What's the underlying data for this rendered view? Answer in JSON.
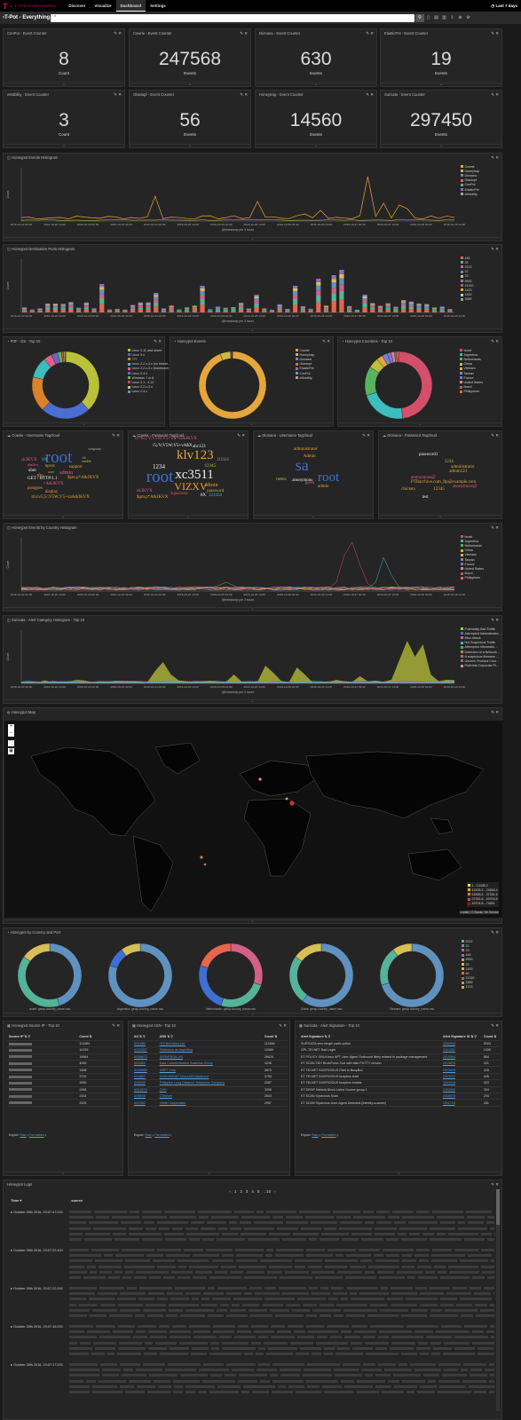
{
  "nav": {
    "brand": "T · ·",
    "brand_sub": "LIFE IS FOR SHARING.",
    "links": [
      "Discover",
      "Visualize",
      "Dashboard",
      "Settings"
    ],
    "active": "Dashboard",
    "time": "Last 7 days"
  },
  "dashboard": {
    "title": "›T-Pot - Everything",
    "query": "*"
  },
  "counters": [
    {
      "title": "ConPot - Event Counter",
      "value": "8",
      "label": "Count"
    },
    {
      "title": "Cowrie - Event Counter",
      "value": "247568",
      "label": "Events"
    },
    {
      "title": "Dionaea - Event Counter",
      "value": "630",
      "label": "Events"
    },
    {
      "title": "ElasticPot - Event Counter",
      "value": "19",
      "label": "Events"
    },
    {
      "title": "eMobility - Event Counter",
      "value": "3",
      "label": "Count"
    },
    {
      "title": "Glastopf - Event Counter",
      "value": "56",
      "label": "Events"
    },
    {
      "title": "Honeytrap - Event Counter",
      "value": "14560",
      "label": "Events"
    },
    {
      "title": "Suricata - Event Counter",
      "value": "297450",
      "label": "Events"
    }
  ],
  "histogram1": {
    "title": "Honeypot Events Histogram",
    "ylabel": "Count",
    "xlabel": "@timestamp per 3 hours",
    "legend": [
      {
        "name": "Cowrie",
        "color": "#e5a63c"
      },
      {
        "name": "Honeytrap",
        "color": "#d1b63f"
      },
      {
        "name": "Dionaea",
        "color": "#6f87d8"
      },
      {
        "name": "Glastopf",
        "color": "#e7664c"
      },
      {
        "name": "ConPot",
        "color": "#54b399"
      },
      {
        "name": "ElasticPot",
        "color": "#9170b8"
      },
      {
        "name": "eMobility",
        "color": "#ca8eae"
      }
    ]
  },
  "histogram2": {
    "title": "Honeypot Destination Ports Histogram",
    "ylabel": "Count",
    "xlabel": "@timestamp per 3 hours",
    "legend": [
      {
        "name": "445",
        "color": "#e7664c"
      },
      {
        "name": "25",
        "color": "#54b399"
      },
      {
        "name": "2222",
        "color": "#d36086"
      },
      {
        "name": "22",
        "color": "#6092c0"
      },
      {
        "name": "23",
        "color": "#d6bf57"
      },
      {
        "name": "5900",
        "color": "#9170b8"
      },
      {
        "name": "21320",
        "color": "#aa6556"
      },
      {
        "name": "1433",
        "color": "#e7a43c"
      },
      {
        "name": "1900",
        "color": "#b0c9e0"
      },
      {
        "name": "3389",
        "color": "#82b366"
      }
    ]
  },
  "x_ticks": [
    "2016-10-22 02:00",
    "2016-10-22 14:00",
    "2016-10-23 02:00",
    "2016-10-23 14:00",
    "2016-10-24 02:00",
    "2016-10-24 14:00",
    "2016-10-25 02:00",
    "2016-10-25 14:00",
    "2016-10-26 02:00",
    "2016-10-26 14:00",
    "2016-10-27 02:00",
    "2016-10-27 14:00",
    "2016-10-28 02:00",
    "2016-10-28 14:00"
  ],
  "p0f": {
    "title": "P0F - OS - Top 10",
    "legend": [
      "Linux 3.11 and newer",
      "Linux 3.x",
      "???",
      "Linux 2.2.x-3.x (no timest...",
      "Linux 2.2.x-3.x (barebone)",
      "Linux 2.4.x",
      "Windows 7 or 8",
      "Linux 3.1 - 3.10",
      "Linux 2.2.x-3.x",
      "Linux 2.4.x"
    ],
    "colors": [
      "#b9c13a",
      "#4a6fd1",
      "#d9822b",
      "#3dbdbd",
      "#e25d8a",
      "#7c5cc4",
      "#58b35f",
      "#c94c4c",
      "#d6bf57",
      "#6092c0"
    ],
    "values": [
      38,
      24,
      17,
      10,
      4,
      3,
      2,
      1,
      0.6,
      0.4
    ]
  },
  "hpevents": {
    "title": "Honeypot Events",
    "legend": [
      "Cowrie",
      "Honeytrap",
      "Dionaea",
      "Glastopf",
      "ElasticPot",
      "ConPot",
      "eMobility"
    ],
    "colors": [
      "#e5a63c",
      "#d1b63f",
      "#6f87d8",
      "#e7664c",
      "#9170b8",
      "#54b399",
      "#ca8eae"
    ],
    "values": [
      94,
      5,
      0.4,
      0.2,
      0.2,
      0.1,
      0.1
    ]
  },
  "countries": {
    "title": "Honeypot Countries - Top 10",
    "legend": [
      "Israel",
      "Argentina",
      "Netherlands",
      "China",
      "Vietnam",
      "Taiwan",
      "France",
      "United States",
      "Brazil",
      "Philippines"
    ],
    "colors": [
      "#d34f6a",
      "#3dbdbd",
      "#58b35f",
      "#b9c13a",
      "#e5a63c",
      "#6f87d8",
      "#9170b8",
      "#ca8eae",
      "#aa6556",
      "#e7664c"
    ],
    "values": [
      48,
      22,
      14,
      5,
      3,
      2.5,
      2,
      1.5,
      1,
      1
    ]
  },
  "cloud1": {
    "title": "Cowrie - Username Tagcloud",
    "words": [
      {
        "t": "root",
        "s": 19,
        "c": "#3f6fd4",
        "x": 52,
        "y": 20
      },
      {
        "t": "support",
        "s": 5,
        "c": "#e5a63c",
        "x": 82,
        "y": 38
      },
      {
        "t": "nproc",
        "s": 5,
        "c": "#b9c13a",
        "x": 52,
        "y": 37
      },
      {
        "t": "admin",
        "s": 6,
        "c": "#e25d8a",
        "x": 70,
        "y": 44
      },
      {
        "t": "$pm.p*A&JKVX",
        "s": 5,
        "c": "#e5a63c",
        "x": 80,
        "y": 50
      },
      {
        "t": "GET / HTTP/1.1",
        "s": 5,
        "c": "#eee",
        "x": 30,
        "y": 51
      },
      {
        "t": "^A&JKVX",
        "s": 5,
        "c": "#e25d8a",
        "x": 50,
        "y": 57
      },
      {
        "t": "postgres",
        "s": 5,
        "c": "#e5a63c",
        "x": 30,
        "y": 62
      },
      {
        "t": "ubnt",
        "s": 5,
        "c": "#eee",
        "x": 31,
        "y": 42
      },
      {
        "t": "8X",
        "s": 5,
        "c": "#3dbdbd",
        "x": 48,
        "y": 30
      },
      {
        "t": "shadow",
        "s": 4,
        "c": "#e25d8a",
        "x": 30,
        "y": 36
      },
      {
        "t": "sh3KVX",
        "s": 5,
        "c": "#e25d8a",
        "x": 22,
        "y": 30
      },
      {
        "t": "display",
        "s": 5,
        "c": "#e5a63c",
        "x": 52,
        "y": 66
      },
      {
        "t": "tftp",
        "s": 5,
        "c": "#e5a63c",
        "x": 42,
        "y": 48
      },
      {
        "t": "ssh",
        "s": 4,
        "c": "#3dbdbd",
        "x": 98,
        "y": 28
      },
      {
        "t": "t/h1v5;5/;V5W;V5+vaA&JKVX",
        "s": 5,
        "c": "#e5a63c",
        "x": 35,
        "y": 72
      },
      {
        "t": "user",
        "s": 4,
        "c": "#b9c13a",
        "x": 56,
        "y": 44
      },
      {
        "t": "enable",
        "s": 4,
        "c": "#b9c13a",
        "x": 98,
        "y": 32
      },
      {
        "t": "sangoma",
        "s": 4,
        "c": "#aaa",
        "x": 106,
        "y": 18
      }
    ]
  },
  "cloud2": {
    "title": "Cowrie - Password Tagcloud",
    "words": [
      {
        "t": "h!*h5;/V;V5W;V5+w$*vaAJKVX",
        "s": 5,
        "c": "#e25d8a",
        "x": 8,
        "y": 6
      },
      {
        "t": "/5;/V;V5W;V5+vA$X",
        "s": 5,
        "c": "#eee",
        "x": 30,
        "y": 14
      },
      {
        "t": "abc123",
        "s": 5,
        "c": "#eee",
        "x": 80,
        "y": 15
      },
      {
        "t": "klv123",
        "s": 15,
        "c": "#e5a63c",
        "x": 60,
        "y": 20
      },
      {
        "t": "111111",
        "s": 5,
        "c": "#aaa",
        "x": 110,
        "y": 30
      },
      {
        "t": "1234",
        "s": 7,
        "c": "#eee",
        "x": 30,
        "y": 37
      },
      {
        "t": "root",
        "s": 19,
        "c": "#3f6fd4",
        "x": 22,
        "y": 42
      },
      {
        "t": "xc3511",
        "s": 15,
        "c": "#eee",
        "x": 58,
        "y": 42
      },
      {
        "t": "12345",
        "s": 5,
        "c": "#b9c13a",
        "x": 95,
        "y": 37
      },
      {
        "t": "VIZXV",
        "s": 12,
        "c": "#e5a63c",
        "x": 57,
        "y": 56
      },
      {
        "t": "admin",
        "s": 6,
        "c": "#e5a63c",
        "x": 95,
        "y": 58
      },
      {
        "t": "password",
        "s": 5,
        "c": "#e5a63c",
        "x": 98,
        "y": 65
      },
      {
        "t": "1qaz2wsx",
        "s": 5,
        "c": "#e25d8a",
        "x": 52,
        "y": 68
      },
      {
        "t": "8X",
        "s": 5,
        "c": "#eee",
        "x": 90,
        "y": 70
      },
      {
        "t": "123456",
        "s": 5,
        "c": "#3dbdbd",
        "x": 100,
        "y": 70
      },
      {
        "t": "$pm.p*A&JKVX",
        "s": 5,
        "c": "#e5a63c",
        "x": 10,
        "y": 72
      },
      {
        "t": "sh3KVX",
        "s": 5,
        "c": "#e25d8a",
        "x": 10,
        "y": 65
      }
    ]
  },
  "cloud3": {
    "title": "Dionaea - Username Tagcloud",
    "words": [
      {
        "t": "administrator",
        "s": 5,
        "c": "#e5a63c",
        "x": 50,
        "y": 18
      },
      {
        "t": "Admin",
        "s": 5,
        "c": "#e5a63c",
        "x": 62,
        "y": 26
      },
      {
        "t": "sa",
        "s": 18,
        "c": "#3f6fd4",
        "x": 52,
        "y": 29
      },
      {
        "t": "root",
        "s": 15,
        "c": "#3f6fd4",
        "x": 80,
        "y": 45
      },
      {
        "t": "anonymous",
        "s": 5,
        "c": "#eee",
        "x": 48,
        "y": 53
      },
      {
        "t": "admin",
        "s": 5,
        "c": "#e5a63c",
        "x": 80,
        "y": 60
      },
      {
        "t": "guest",
        "s": 5,
        "c": "#e25d8a",
        "x": 64,
        "y": 56
      },
      {
        "t": "netsis",
        "s": 5,
        "c": "#b9c13a",
        "x": 28,
        "y": 52
      }
    ]
  },
  "cloud4": {
    "title": "Dionaea - Password Tagcloud",
    "words": [
      {
        "t": "password1",
        "s": 5,
        "c": "#eee",
        "x": 50,
        "y": 24
      },
      {
        "t": "1234",
        "s": 5,
        "c": "#b9c13a",
        "x": 82,
        "y": 32
      },
      {
        "t": "administrator",
        "s": 5,
        "c": "#e5a63c",
        "x": 90,
        "y": 38
      },
      {
        "t": "admin123",
        "s": 5,
        "c": "#e5a63c",
        "x": 88,
        "y": 43
      },
      {
        "t": "PTRarchive.com_ftp@example.com",
        "s": 5,
        "c": "#e5a63c",
        "x": 40,
        "y": 55
      },
      {
        "t": "anonymous@",
        "s": 5,
        "c": "#e25d8a",
        "x": 40,
        "y": 50
      },
      {
        "t": "chicken",
        "s": 5,
        "c": "#e5a63c",
        "x": 28,
        "y": 63
      },
      {
        "t": "12345",
        "s": 5,
        "c": "#e5a63c",
        "x": 68,
        "y": 63
      },
      {
        "t": "test",
        "s": 5,
        "c": "#eee",
        "x": 54,
        "y": 72
      },
      {
        "t": "anonymous@",
        "s": 5,
        "c": "#e25d8a",
        "x": 92,
        "y": 60
      }
    ]
  },
  "countryHist": {
    "title": "Honeypot Events by Country Histogram",
    "ylabel": "Count",
    "xlabel": "@timestamp per 3 hours",
    "legend": [
      {
        "name": "Israel",
        "color": "#d34f6a"
      },
      {
        "name": "Argentina",
        "color": "#3dbdbd"
      },
      {
        "name": "Netherlands",
        "color": "#58b35f"
      },
      {
        "name": "China",
        "color": "#b9c13a"
      },
      {
        "name": "Vietnam",
        "color": "#e5a63c"
      },
      {
        "name": "Taiwan",
        "color": "#6f87d8"
      },
      {
        "name": "France",
        "color": "#9170b8"
      },
      {
        "name": "United States",
        "color": "#ca8eae"
      },
      {
        "name": "Brazil",
        "color": "#aa6556"
      },
      {
        "name": "Philippines",
        "color": "#e7664c"
      }
    ]
  },
  "suricataHist": {
    "title": "Suricata - Alert Category Histogram - Top 10",
    "ylabel": "Count",
    "xlabel": "@timestamp per 3 hours",
    "legend": [
      {
        "name": "Potentially Bad Traffic",
        "color": "#b9c13a"
      },
      {
        "name": "Attempted Administrator...",
        "color": "#3f6fd4"
      },
      {
        "name": "Misc Attack",
        "color": "#e25d8a"
      },
      {
        "name": "Not Suspicious Traffic",
        "color": "#3dbdbd"
      },
      {
        "name": "Attempted Informatio...",
        "color": "#58b35f"
      },
      {
        "name": "Detection of a Network ...",
        "color": "#d9822b"
      },
      {
        "name": "A suspicious filename ...",
        "color": "#9170b8"
      },
      {
        "name": "Generic Protocol Com...",
        "color": "#aa6556"
      },
      {
        "name": "Potential Corporate Pr...",
        "color": "#ca8eae"
      }
    ]
  },
  "map": {
    "title": "Honeypot Map",
    "legend": [
      "1 - 12435.2",
      "12435.2 - 24858.4",
      "24858.4 - 37281.6",
      "37281.6 - 49704.8",
      "49704.8 - 74551"
    ],
    "attribution": "Leaflet | © Elastic Tile Service"
  },
  "countryPort": {
    "title": "Honeypot by Country and Port",
    "items": [
      "Israel: geoip.country_name.raw",
      "Argentina: geoip.country_name.raw",
      "Netherlands: geoip.country_name.raw",
      "China: geoip.country_name.raw",
      "Vietnam: geoip.country_name.raw"
    ],
    "legend": [
      "2222",
      "22",
      "23",
      "445",
      "5900",
      "25",
      "1433",
      "80",
      "21320",
      "3389",
      "1723"
    ]
  },
  "srcip": {
    "title": "Honeypot Source IP - Top 10",
    "col1": "Source IP",
    "col2": "Count",
    "counts": [
      "113484",
      "10239",
      "19984",
      "4045",
      "1908",
      "3720",
      "3050",
      "2938",
      "2434",
      "2025"
    ]
  },
  "asn": {
    "title": "Honeypot ASN - Top 10",
    "col1": "AS",
    "col2": "ASN",
    "col3": "Count",
    "rows": [
      [
        "AS1680",
        "013 NetVision Ltd.",
        "113484"
      ],
      [
        "AS22927",
        "Telefonica de Argentina",
        "10380"
      ],
      [
        "AS58673",
        "SERVEROIL-AS",
        "26620"
      ],
      [
        "AS3462",
        "Data Communication Business Group",
        "4246"
      ],
      [
        "AS45899",
        "VNPT Corp",
        "3870"
      ],
      [
        "AS4837",
        "CHICONGUP-China169-Backbone",
        "3790"
      ],
      [
        "AS9299",
        "Philippine Long Distance Telephone Company",
        "3387"
      ],
      [
        "AS16276",
        "OVH",
        "3096"
      ],
      [
        "AS8536",
        "CTelenet",
        "2843"
      ],
      [
        "AS7552",
        "Viettel Corporation",
        "2957"
      ]
    ]
  },
  "suricataSig": {
    "title": "Suricata - Alert Signature - Top 10",
    "col1": "Alert Signature",
    "col2": "Alert Signature ID",
    "col3": "Count",
    "rows": [
      [
        "SURICATA zero length padb option",
        "2200094",
        "5003"
      ],
      [
        "GPL TELNET Bad Login",
        "2101251",
        "1439"
      ],
      [
        "ET POLICY GNU/Linux APT User-Agent Outbound likely related to package management",
        "2013504",
        "664"
      ],
      [
        "ET SCAN SSH BruteForce Tool with fake PUTTY version",
        "2019876",
        "421"
      ],
      [
        "ET TELNET SUSPICIOUS Path to BusyBox",
        "2023019",
        "428"
      ],
      [
        "ET TELNET SUSPICIOUS busybox shell",
        "2023017",
        "426"
      ],
      [
        "ET TELNET SUSPICIOUS busybox enable",
        "2023018",
        "423"
      ],
      [
        "ET DROP Dshield Block Listed Source group 1",
        "2402000",
        "304"
      ],
      [
        "ET SCAN Sipvicious Scan",
        "2008578",
        "294"
      ],
      [
        "ET SCAN Sipvicious User-Agent Detected (friendly-scanner)",
        "2011716",
        "281"
      ]
    ]
  },
  "export": {
    "label": "Export:",
    "raw": "Raw",
    "formatted": "Formatted"
  },
  "logs": {
    "title": "Honeypot Logs",
    "pages": [
      "‹",
      "1",
      "2",
      "3",
      "4",
      "5",
      "...10",
      "›"
    ],
    "col_time": "Time",
    "col_source": "_source",
    "times": [
      "October 28th 2016, 20:07:47.000",
      "October 28th 2016, 20:07:22.400",
      "October 28th 2016, 20:07:22.000",
      "October 28th 2016, 20:07:19.000",
      "October 28th 2016, 20:07:17.000"
    ]
  }
}
